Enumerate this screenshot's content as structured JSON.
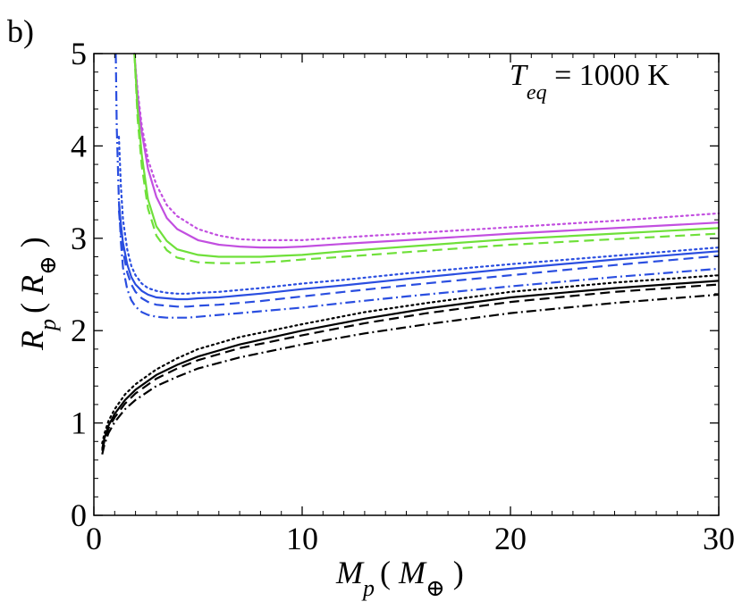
{
  "panel_label": "b)",
  "chart_data": {
    "type": "line",
    "annotation": {
      "main": "T",
      "sub": "eq",
      "rest": " = 1000 K"
    },
    "xlabel": {
      "main": "M",
      "sub": "p",
      "paren_open": "( ",
      "inner": "M",
      "inner_sub": "⊕",
      "paren_close": " )"
    },
    "ylabel": {
      "main": "R",
      "sub": "p",
      "paren_open": "( ",
      "inner": "R",
      "inner_sub": "⊕",
      "paren_close": " )"
    },
    "xlim": [
      0,
      30
    ],
    "ylim": [
      0,
      5
    ],
    "xticks": [
      0,
      10,
      20,
      30
    ],
    "yticks": [
      0,
      1,
      2,
      3,
      4,
      5
    ],
    "xminor": [
      1,
      2,
      3,
      4,
      5,
      6,
      7,
      8,
      9,
      11,
      12,
      13,
      14,
      15,
      16,
      17,
      18,
      19,
      21,
      22,
      23,
      24,
      25,
      26,
      27,
      28,
      29
    ],
    "yminor": [
      0.2,
      0.4,
      0.6,
      0.8,
      1.2,
      1.4,
      1.6,
      1.8,
      2.2,
      2.4,
      2.6,
      2.8,
      3.2,
      3.4,
      3.6,
      3.8,
      4.2,
      4.4,
      4.6,
      4.8
    ],
    "series": [
      {
        "name": "magenta-solid",
        "color": "#c24fe0",
        "style": "solid",
        "x": [
          1.95,
          2.1,
          2.3,
          2.6,
          3.0,
          3.5,
          4.0,
          5.0,
          6.0,
          7.0,
          8.0,
          9.0,
          10,
          12,
          15,
          20,
          25,
          30
        ],
        "y": [
          5.0,
          4.55,
          4.15,
          3.75,
          3.45,
          3.22,
          3.1,
          2.98,
          2.93,
          2.91,
          2.9,
          2.9,
          2.91,
          2.94,
          2.98,
          3.05,
          3.11,
          3.17
        ]
      },
      {
        "name": "magenta-dotted",
        "color": "#c24fe0",
        "style": "dotted",
        "x": [
          1.95,
          2.1,
          2.3,
          2.6,
          3.0,
          3.5,
          4.0,
          5.0,
          6.0,
          7.0,
          8.0,
          9.0,
          10,
          12,
          15,
          20,
          25,
          30
        ],
        "y": [
          5.0,
          4.6,
          4.22,
          3.85,
          3.58,
          3.36,
          3.24,
          3.1,
          3.03,
          2.99,
          2.98,
          2.98,
          2.98,
          3.01,
          3.05,
          3.12,
          3.19,
          3.27
        ]
      },
      {
        "name": "green-solid",
        "color": "#6fe03a",
        "style": "solid",
        "x": [
          1.95,
          2.1,
          2.3,
          2.6,
          3.0,
          3.5,
          4.0,
          5.0,
          6.0,
          7.0,
          8.0,
          9.0,
          10,
          12,
          15,
          20,
          25,
          30
        ],
        "y": [
          5.0,
          4.4,
          3.9,
          3.42,
          3.13,
          2.97,
          2.88,
          2.82,
          2.8,
          2.8,
          2.8,
          2.81,
          2.82,
          2.86,
          2.91,
          2.99,
          3.05,
          3.11
        ]
      },
      {
        "name": "green-dashed",
        "color": "#6fe03a",
        "style": "dashed",
        "x": [
          1.95,
          2.1,
          2.3,
          2.6,
          3.0,
          3.5,
          4.0,
          5.0,
          6.0,
          7.0,
          8.0,
          9.0,
          10,
          12,
          15,
          20,
          25,
          30
        ],
        "y": [
          5.0,
          4.3,
          3.78,
          3.32,
          3.03,
          2.87,
          2.79,
          2.74,
          2.73,
          2.73,
          2.74,
          2.75,
          2.77,
          2.8,
          2.85,
          2.93,
          2.99,
          3.05
        ]
      },
      {
        "name": "blue-solid",
        "color": "#2a4ee0",
        "style": "solid",
        "x": [
          1.2,
          1.3,
          1.4,
          1.6,
          1.8,
          2.0,
          2.3,
          2.6,
          3.0,
          3.5,
          4.0,
          4.5,
          5.0,
          6.0,
          7.0,
          8.0,
          10,
          12,
          15,
          20,
          25,
          30
        ],
        "y": [
          3.4,
          3.15,
          2.95,
          2.72,
          2.58,
          2.5,
          2.43,
          2.39,
          2.36,
          2.35,
          2.34,
          2.34,
          2.35,
          2.36,
          2.38,
          2.4,
          2.45,
          2.49,
          2.56,
          2.67,
          2.77,
          2.86
        ]
      },
      {
        "name": "blue-dotted",
        "color": "#2a4ee0",
        "style": "dotted",
        "x": [
          1.2,
          1.3,
          1.4,
          1.6,
          1.8,
          2.0,
          2.3,
          2.6,
          3.0,
          3.5,
          4.0,
          4.5,
          5.0,
          6.0,
          7.0,
          8.0,
          10,
          12,
          15,
          20,
          25,
          30
        ],
        "y": [
          4.1,
          3.55,
          3.2,
          2.88,
          2.7,
          2.6,
          2.51,
          2.46,
          2.43,
          2.41,
          2.4,
          2.4,
          2.41,
          2.42,
          2.44,
          2.46,
          2.51,
          2.55,
          2.62,
          2.72,
          2.81,
          2.9
        ]
      },
      {
        "name": "blue-dashed",
        "color": "#2a4ee0",
        "style": "dashed",
        "x": [
          1.2,
          1.3,
          1.4,
          1.6,
          1.8,
          2.0,
          2.3,
          2.6,
          3.0,
          3.5,
          4.0,
          4.5,
          5.0,
          6.0,
          7.0,
          8.0,
          10,
          12,
          15,
          20,
          25,
          30
        ],
        "y": [
          3.3,
          3.05,
          2.86,
          2.63,
          2.5,
          2.42,
          2.35,
          2.31,
          2.28,
          2.27,
          2.26,
          2.26,
          2.27,
          2.28,
          2.3,
          2.32,
          2.37,
          2.42,
          2.49,
          2.6,
          2.71,
          2.81
        ]
      },
      {
        "name": "blue-dashdot",
        "color": "#2a4ee0",
        "style": "dashdot",
        "x": [
          1.05,
          1.1,
          1.2,
          1.3,
          1.4,
          1.6,
          1.8,
          2.0,
          2.3,
          2.6,
          3.0,
          3.5,
          4.0,
          4.5,
          5.0,
          6.0,
          7.0,
          8.0,
          10,
          12,
          15,
          20,
          25,
          30
        ],
        "y": [
          5.0,
          4.2,
          3.4,
          2.95,
          2.68,
          2.45,
          2.33,
          2.26,
          2.2,
          2.17,
          2.15,
          2.14,
          2.14,
          2.14,
          2.15,
          2.17,
          2.19,
          2.21,
          2.25,
          2.3,
          2.37,
          2.48,
          2.58,
          2.67
        ]
      },
      {
        "name": "black-solid",
        "color": "#000000",
        "style": "solid",
        "x": [
          0.4,
          0.5,
          0.7,
          1.0,
          1.5,
          2.0,
          3.0,
          4.0,
          5.0,
          7.0,
          10,
          13,
          16,
          20,
          25,
          30
        ],
        "y": [
          0.72,
          0.83,
          0.97,
          1.1,
          1.25,
          1.36,
          1.52,
          1.63,
          1.72,
          1.85,
          2.0,
          2.13,
          2.24,
          2.36,
          2.46,
          2.54
        ]
      },
      {
        "name": "black-dotted",
        "color": "#000000",
        "style": "dotted",
        "x": [
          0.4,
          0.5,
          0.7,
          1.0,
          1.5,
          2.0,
          3.0,
          4.0,
          5.0,
          7.0,
          10,
          13,
          16,
          20,
          25,
          30
        ],
        "y": [
          0.78,
          0.88,
          1.02,
          1.15,
          1.31,
          1.42,
          1.58,
          1.7,
          1.8,
          1.93,
          2.07,
          2.2,
          2.3,
          2.42,
          2.52,
          2.6
        ]
      },
      {
        "name": "black-dashed",
        "color": "#000000",
        "style": "dashed",
        "x": [
          0.4,
          0.5,
          0.7,
          1.0,
          1.5,
          2.0,
          3.0,
          4.0,
          5.0,
          7.0,
          10,
          13,
          16,
          20,
          25,
          30
        ],
        "y": [
          0.7,
          0.8,
          0.94,
          1.06,
          1.21,
          1.32,
          1.48,
          1.59,
          1.68,
          1.81,
          1.95,
          2.08,
          2.19,
          2.31,
          2.42,
          2.5
        ]
      },
      {
        "name": "black-dashdot",
        "color": "#000000",
        "style": "dashdot",
        "x": [
          0.4,
          0.5,
          0.7,
          1.0,
          1.5,
          2.0,
          3.0,
          4.0,
          5.0,
          7.0,
          10,
          13,
          16,
          20,
          25,
          30
        ],
        "y": [
          0.66,
          0.76,
          0.89,
          1.01,
          1.15,
          1.25,
          1.4,
          1.5,
          1.59,
          1.71,
          1.85,
          1.97,
          2.07,
          2.19,
          2.3,
          2.39
        ]
      }
    ]
  }
}
